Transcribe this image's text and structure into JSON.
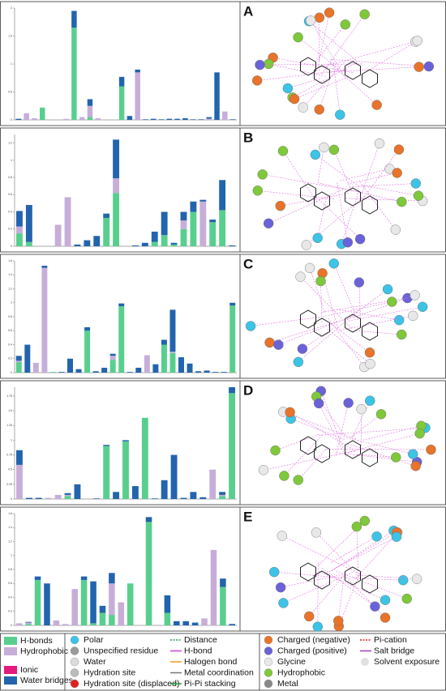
{
  "chart_data": [
    {
      "type": "bar",
      "stacked": true,
      "panel_label": "A",
      "ylim": [
        0,
        2
      ],
      "yticks": [
        0,
        0.5,
        1,
        1.5,
        2
      ],
      "categories": [
        null,
        null,
        null,
        null,
        null,
        null,
        null,
        null,
        null,
        null,
        null,
        null,
        null,
        null,
        null,
        null,
        null,
        null,
        null,
        null,
        null,
        null,
        null,
        null,
        null,
        null,
        null,
        null
      ],
      "series": [
        {
          "name": "H-bonds",
          "color": "#58cf8e",
          "values": [
            0,
            0,
            0,
            0.22,
            0,
            0,
            0,
            1.65,
            0,
            0.05,
            0,
            0,
            0,
            0.6,
            0,
            0,
            0,
            0,
            0,
            0,
            0,
            0,
            0,
            0,
            0,
            0,
            0,
            0
          ]
        },
        {
          "name": "Hydrophobic",
          "color": "#c7aed9",
          "values": [
            0,
            0.12,
            0.03,
            0,
            0,
            0,
            0.02,
            0,
            0.05,
            0.2,
            0.03,
            0,
            0,
            0,
            0,
            0.85,
            0,
            0,
            0,
            0,
            0,
            0,
            0,
            0,
            0.02,
            0,
            0.15,
            0
          ]
        },
        {
          "name": "Water bridges",
          "color": "#2264ad",
          "values": [
            0.02,
            0,
            0,
            0,
            0,
            0,
            0,
            0.3,
            0,
            0.12,
            0,
            0,
            0,
            0.17,
            0.07,
            0.05,
            0.01,
            0.02,
            0.01,
            0.02,
            0.02,
            0.03,
            0.01,
            0.01,
            0.03,
            0.85,
            0,
            0.01
          ]
        }
      ]
    },
    {
      "type": "bar",
      "stacked": true,
      "panel_label": "B",
      "ylim": [
        0,
        1.3
      ],
      "yticks": [
        0,
        0.2,
        0.4,
        0.6,
        0.8,
        1,
        1.2
      ],
      "categories": [
        null,
        null,
        null,
        null,
        null,
        null,
        null,
        null,
        null,
        null,
        null,
        null,
        null,
        null,
        null,
        null,
        null,
        null,
        null,
        null,
        null,
        null,
        null
      ],
      "series": [
        {
          "name": "H-bonds",
          "color": "#58cf8e",
          "values": [
            0.15,
            0.05,
            0,
            0,
            0,
            0,
            0,
            0,
            0,
            0.33,
            0.62,
            0,
            0,
            0,
            0.05,
            0.13,
            0.02,
            0.2,
            0.4,
            0,
            0.28,
            0.42,
            0
          ]
        },
        {
          "name": "Hydrophobic",
          "color": "#c7aed9",
          "values": [
            0.08,
            0,
            0,
            0,
            0.25,
            0.57,
            0,
            0,
            0,
            0,
            0.17,
            0,
            0,
            0,
            0,
            0,
            0,
            0.1,
            0,
            0.52,
            0,
            0,
            0
          ]
        },
        {
          "name": "Water bridges",
          "color": "#2264ad",
          "values": [
            0.18,
            0.43,
            0,
            0,
            0,
            0,
            0.02,
            0.07,
            0.12,
            0.05,
            0.45,
            0,
            0.01,
            0.04,
            0.12,
            0.27,
            0.02,
            0.1,
            0.12,
            0.02,
            0.03,
            0.35,
            0.01
          ]
        }
      ]
    },
    {
      "type": "bar",
      "stacked": true,
      "panel_label": "C",
      "ylim": [
        0,
        1.6
      ],
      "yticks": [
        0,
        0.2,
        0.4,
        0.6,
        0.8,
        1,
        1.2,
        1.4,
        1.6
      ],
      "categories": [
        null,
        null,
        null,
        null,
        null,
        null,
        null,
        null,
        null,
        null,
        null,
        null,
        null,
        null,
        null,
        null,
        null,
        null,
        null,
        null,
        null,
        null,
        null,
        null,
        null,
        null
      ],
      "series": [
        {
          "name": "H-bonds",
          "color": "#58cf8e",
          "values": [
            0.15,
            0,
            0,
            0,
            0.01,
            0,
            0,
            0,
            0.6,
            0,
            0,
            0.18,
            0.95,
            0,
            0,
            0,
            0,
            0.4,
            0.28,
            0,
            0,
            0,
            0,
            0,
            0,
            0.96
          ]
        },
        {
          "name": "Hydrophobic",
          "color": "#c7aed9",
          "values": [
            0.02,
            0,
            0.14,
            1.5,
            0,
            0,
            0,
            0,
            0,
            0,
            0,
            0.06,
            0,
            0,
            0,
            0.25,
            0,
            0,
            0.02,
            0,
            0,
            0,
            0,
            0,
            0,
            0
          ]
        },
        {
          "name": "Water bridges",
          "color": "#2264ad",
          "values": [
            0.07,
            0.4,
            0,
            0.03,
            0,
            0.01,
            0.2,
            0.05,
            0.05,
            0.02,
            0.07,
            0.03,
            0.04,
            0.01,
            0.07,
            0,
            0.12,
            0.07,
            0.6,
            0.22,
            0.13,
            0.02,
            0.03,
            0.01,
            0.01,
            0.04
          ]
        }
      ]
    },
    {
      "type": "bar",
      "stacked": true,
      "panel_label": "D",
      "ylim": [
        0,
        1.9
      ],
      "yticks": [
        0,
        0.25,
        0.5,
        0.75,
        1,
        1.25,
        1.5,
        1.75
      ],
      "categories": [
        null,
        null,
        null,
        null,
        null,
        null,
        null,
        null,
        null,
        null,
        null,
        null,
        null,
        null,
        null,
        null,
        null,
        null,
        null,
        null,
        null,
        null,
        null
      ],
      "series": [
        {
          "name": "H-bonds",
          "color": "#58cf8e",
          "values": [
            0,
            0,
            0,
            0,
            0,
            0.05,
            0,
            0,
            0,
            0.9,
            0,
            0.98,
            0,
            1.38,
            0,
            0,
            0,
            0,
            0,
            0,
            0,
            0.05,
            1.8
          ]
        },
        {
          "name": "Hydrophobic",
          "color": "#c7aed9",
          "values": [
            0.58,
            0,
            0,
            0.02,
            0.07,
            0.02,
            0,
            0,
            0,
            0,
            0,
            0,
            0,
            0,
            0,
            0,
            0,
            0,
            0,
            0,
            0.5,
            0.02,
            0
          ]
        },
        {
          "name": "Water bridges",
          "color": "#2264ad",
          "values": [
            0.25,
            0.02,
            0.02,
            0,
            0,
            0.03,
            0.25,
            0,
            0.01,
            0.02,
            0.12,
            0.02,
            0.22,
            0,
            0.01,
            0.32,
            0.75,
            0.02,
            0.12,
            0.03,
            0,
            0.05,
            0.1
          ]
        }
      ]
    },
    {
      "type": "bar",
      "stacked": true,
      "panel_label": "E",
      "ylim": [
        0,
        1.6
      ],
      "yticks": [
        0,
        0.2,
        0.4,
        0.6,
        0.8,
        1,
        1.2,
        1.4,
        1.6
      ],
      "categories": [
        null,
        null,
        null,
        null,
        null,
        null,
        null,
        null,
        null,
        null,
        null,
        null,
        null,
        null,
        null,
        null,
        null,
        null,
        null,
        null,
        null,
        null,
        null,
        null
      ],
      "series": [
        {
          "name": "H-bonds",
          "color": "#58cf8e",
          "values": [
            0,
            0.02,
            0.65,
            0,
            0,
            0,
            0,
            0.65,
            0.03,
            0.18,
            0.15,
            0,
            0.6,
            0,
            1.48,
            0,
            0.18,
            0,
            0,
            0,
            0,
            0,
            0.55,
            0
          ]
        },
        {
          "name": "Hydrophobic",
          "color": "#c7aed9",
          "values": [
            0.03,
            0.02,
            0,
            0,
            0.07,
            0.02,
            0.52,
            0,
            0,
            0,
            0.45,
            0.33,
            0,
            0,
            0,
            0,
            0,
            0,
            0,
            0,
            0.1,
            1.08,
            0,
            0
          ]
        },
        {
          "name": "Water bridges",
          "color": "#2264ad",
          "values": [
            0,
            0.01,
            0.05,
            0.6,
            0,
            0,
            0,
            0.05,
            0.6,
            0.1,
            0.15,
            0,
            0,
            0,
            0.07,
            0,
            0.25,
            0.06,
            0.06,
            0.04,
            0,
            0,
            0.12,
            0.02
          ]
        }
      ]
    }
  ],
  "legend": {
    "bar_items": [
      {
        "label": "H-bonds",
        "color": "#58cf8e"
      },
      {
        "label": "Hydrophobic",
        "color": "#c7aed9"
      },
      {
        "label": "Ionic",
        "color": "#e6197d"
      },
      {
        "label": "Water bridges",
        "color": "#2264ad"
      }
    ],
    "col2": [
      {
        "label": "Polar",
        "color": "#3cc3e6"
      },
      {
        "label": "Unspecified residue",
        "color": "#9a9a9a"
      },
      {
        "label": "Water",
        "color": "#dcdcdc"
      },
      {
        "label": "Hydration site",
        "color": "#bbbbbb"
      },
      {
        "label": "Hydration site (displaced)",
        "color": "#e02020"
      }
    ],
    "col3": [
      {
        "label": "Distance",
        "color": "#1fa04a"
      },
      {
        "label": "H-bond",
        "color": "#d640d6"
      },
      {
        "label": "Halogen bond",
        "color": "#e89a20"
      },
      {
        "label": "Metal coordination",
        "color": "#777777"
      },
      {
        "label": "Pi-Pi stacking",
        "color": "#1f9a3a"
      }
    ],
    "col4": [
      {
        "label": "Charged (negative)",
        "color": "#e8732a"
      },
      {
        "label": "Charged (positive)",
        "color": "#6a62d8"
      },
      {
        "label": "Glycine",
        "color": "#e8e8e8"
      },
      {
        "label": "Hydrophobic",
        "color": "#7ec83a"
      },
      {
        "label": "Metal",
        "color": "#888888"
      }
    ],
    "col5": [
      {
        "label": "Pi-cation",
        "color": "#e01818"
      },
      {
        "label": "Salt bridge",
        "color": "#a040c8"
      },
      {
        "label": "Solvent exposure",
        "color": "#cccccc"
      }
    ]
  }
}
